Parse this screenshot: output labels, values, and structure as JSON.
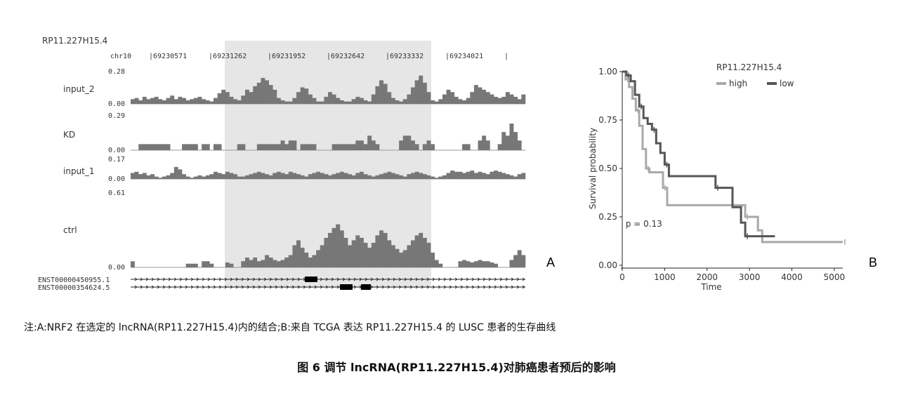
{
  "figure": {
    "caption_note": "注:A:NRF2 在选定的 lncRNA(RP11.227H15.4)内的结合;B:来自 TCGA 表达 RP11.227H15.4 的 LUSC 患者的生存曲线",
    "caption_title": "图 6  调节 lncRNA(RP11.227H15.4)对肺癌患者预后的影响",
    "label_a": "A",
    "label_b": "B"
  },
  "chart_data": [
    {
      "type": "area",
      "panel": "A",
      "title": "RP11.227H15.4",
      "chrom_label": "chr10",
      "x_ticks": [
        "69230571",
        "69231262",
        "69231952",
        "69232642",
        "69233332",
        "69234021"
      ],
      "highlight": "69231262–69233332 region",
      "bar_color": "#777777",
      "highlight_color": "#e6e6e6",
      "tracks": [
        {
          "name": "input_2",
          "ymax_label": "0.28",
          "ymin_label": "0.00",
          "ymax": 0.28,
          "values": [
            0.04,
            0.05,
            0.03,
            0.06,
            0.04,
            0.05,
            0.06,
            0.04,
            0.03,
            0.05,
            0.07,
            0.04,
            0.06,
            0.05,
            0.03,
            0.04,
            0.05,
            0.06,
            0.04,
            0.03,
            0.02,
            0.05,
            0.09,
            0.12,
            0.1,
            0.06,
            0.04,
            0.03,
            0.07,
            0.12,
            0.1,
            0.15,
            0.18,
            0.22,
            0.2,
            0.16,
            0.12,
            0.05,
            0.03,
            0.02,
            0.02,
            0.05,
            0.1,
            0.14,
            0.13,
            0.08,
            0.05,
            0.02,
            0.02,
            0.06,
            0.1,
            0.08,
            0.05,
            0.03,
            0.02,
            0.02,
            0.04,
            0.06,
            0.05,
            0.03,
            0.02,
            0.08,
            0.15,
            0.2,
            0.17,
            0.1,
            0.05,
            0.03,
            0.02,
            0.04,
            0.08,
            0.14,
            0.2,
            0.24,
            0.18,
            0.1,
            0.03,
            0.02,
            0.04,
            0.08,
            0.12,
            0.1,
            0.06,
            0.04,
            0.03,
            0.05,
            0.1,
            0.16,
            0.14,
            0.12,
            0.1,
            0.08,
            0.06,
            0.05,
            0.06,
            0.1,
            0.08,
            0.06,
            0.04,
            0.08
          ]
        },
        {
          "name": "KD",
          "ymax_label": "0.29",
          "ymin_label": "0.00",
          "ymax": 0.29,
          "values": [
            0.0,
            0.0,
            0.05,
            0.05,
            0.05,
            0.05,
            0.05,
            0.05,
            0.05,
            0.05,
            0.0,
            0.0,
            0.0,
            0.05,
            0.05,
            0.05,
            0.05,
            0.0,
            0.05,
            0.05,
            0.0,
            0.05,
            0.05,
            0.0,
            0.0,
            0.0,
            0.0,
            0.05,
            0.05,
            0.0,
            0.0,
            0.0,
            0.05,
            0.05,
            0.05,
            0.05,
            0.05,
            0.05,
            0.08,
            0.05,
            0.08,
            0.08,
            0.0,
            0.05,
            0.05,
            0.05,
            0.05,
            0.0,
            0.0,
            0.0,
            0.0,
            0.05,
            0.05,
            0.05,
            0.05,
            0.05,
            0.05,
            0.08,
            0.08,
            0.05,
            0.12,
            0.08,
            0.05,
            0.0,
            0.0,
            0.0,
            0.0,
            0.0,
            0.08,
            0.12,
            0.12,
            0.08,
            0.05,
            0.0,
            0.05,
            0.08,
            0.05,
            0.0,
            0.0,
            0.0,
            0.0,
            0.0,
            0.0,
            0.0,
            0.05,
            0.05,
            0.0,
            0.0,
            0.08,
            0.12,
            0.08,
            0.0,
            0.0,
            0.05,
            0.15,
            0.12,
            0.22,
            0.15,
            0.08,
            0.0
          ]
        },
        {
          "name": "input_1",
          "ymax_label": "0.17",
          "ymin_label": "0.00",
          "ymax": 0.17,
          "values": [
            0.05,
            0.06,
            0.04,
            0.05,
            0.03,
            0.04,
            0.02,
            0.01,
            0.02,
            0.03,
            0.05,
            0.1,
            0.08,
            0.04,
            0.02,
            0.01,
            0.02,
            0.03,
            0.02,
            0.03,
            0.04,
            0.06,
            0.05,
            0.04,
            0.06,
            0.05,
            0.04,
            0.02,
            0.02,
            0.03,
            0.04,
            0.05,
            0.06,
            0.05,
            0.04,
            0.03,
            0.05,
            0.06,
            0.05,
            0.04,
            0.06,
            0.05,
            0.04,
            0.03,
            0.02,
            0.04,
            0.05,
            0.06,
            0.05,
            0.04,
            0.03,
            0.04,
            0.05,
            0.06,
            0.05,
            0.04,
            0.03,
            0.05,
            0.06,
            0.04,
            0.03,
            0.02,
            0.03,
            0.04,
            0.05,
            0.06,
            0.05,
            0.04,
            0.03,
            0.02,
            0.04,
            0.05,
            0.06,
            0.05,
            0.04,
            0.03,
            0.02,
            0.01,
            0.02,
            0.03,
            0.05,
            0.07,
            0.06,
            0.06,
            0.05,
            0.06,
            0.07,
            0.05,
            0.06,
            0.05,
            0.04,
            0.06,
            0.07,
            0.06,
            0.05,
            0.04,
            0.03,
            0.02,
            0.04,
            0.05
          ]
        },
        {
          "name": "ctrl",
          "ymax_label": "0.61",
          "ymin_label": "0.00",
          "ymax": 0.61,
          "values": [
            0.05,
            0.0,
            0.0,
            0.0,
            0.0,
            0.0,
            0.0,
            0.0,
            0.0,
            0.0,
            0.0,
            0.0,
            0.0,
            0.0,
            0.03,
            0.03,
            0.03,
            0.0,
            0.05,
            0.05,
            0.03,
            0.0,
            0.0,
            0.0,
            0.04,
            0.03,
            0.0,
            0.0,
            0.05,
            0.08,
            0.06,
            0.08,
            0.05,
            0.06,
            0.1,
            0.08,
            0.06,
            0.05,
            0.06,
            0.08,
            0.1,
            0.18,
            0.22,
            0.16,
            0.12,
            0.08,
            0.1,
            0.14,
            0.18,
            0.24,
            0.28,
            0.32,
            0.35,
            0.3,
            0.24,
            0.18,
            0.22,
            0.26,
            0.24,
            0.2,
            0.16,
            0.2,
            0.26,
            0.3,
            0.28,
            0.22,
            0.18,
            0.15,
            0.12,
            0.14,
            0.18,
            0.22,
            0.26,
            0.28,
            0.24,
            0.2,
            0.12,
            0.06,
            0.03,
            0.0,
            0.0,
            0.0,
            0.0,
            0.05,
            0.06,
            0.05,
            0.04,
            0.05,
            0.06,
            0.05,
            0.05,
            0.04,
            0.03,
            0.0,
            0.0,
            0.0,
            0.06,
            0.1,
            0.14,
            0.1
          ]
        }
      ],
      "transcripts": [
        "ENST00000450955.1",
        "ENST00000354624.5"
      ]
    },
    {
      "type": "line",
      "panel": "B",
      "title": "RP11.227H15.4",
      "xlabel": "Time",
      "ylabel": "Survival probability",
      "xlim": [
        0,
        5200
      ],
      "ylim": [
        0,
        1
      ],
      "x_ticks": [
        0,
        1000,
        2000,
        3000,
        4000,
        5000
      ],
      "y_ticks": [
        "0.00",
        "0.25",
        "0.50",
        "0.75",
        "1.00"
      ],
      "annotation": "p = 0.13",
      "legend": "top",
      "series": [
        {
          "name": "high",
          "color": "#a9a9a9",
          "points": [
            [
              0,
              1.0
            ],
            [
              80,
              0.96
            ],
            [
              160,
              0.92
            ],
            [
              240,
              0.86
            ],
            [
              320,
              0.8
            ],
            [
              400,
              0.72
            ],
            [
              480,
              0.6
            ],
            [
              560,
              0.5
            ],
            [
              640,
              0.48
            ],
            [
              900,
              0.48
            ],
            [
              960,
              0.4
            ],
            [
              1060,
              0.31
            ],
            [
              2500,
              0.31
            ],
            [
              2900,
              0.25
            ],
            [
              3200,
              0.18
            ],
            [
              3300,
              0.12
            ],
            [
              5200,
              0.12
            ]
          ]
        },
        {
          "name": "low",
          "color": "#555555",
          "points": [
            [
              0,
              1.0
            ],
            [
              100,
              0.98
            ],
            [
              200,
              0.95
            ],
            [
              300,
              0.88
            ],
            [
              400,
              0.82
            ],
            [
              500,
              0.76
            ],
            [
              600,
              0.73
            ],
            [
              700,
              0.7
            ],
            [
              800,
              0.63
            ],
            [
              900,
              0.58
            ],
            [
              1000,
              0.52
            ],
            [
              1100,
              0.46
            ],
            [
              2100,
              0.46
            ],
            [
              2200,
              0.4
            ],
            [
              2600,
              0.3
            ],
            [
              2800,
              0.22
            ],
            [
              2900,
              0.15
            ],
            [
              3600,
              0.15
            ]
          ]
        }
      ]
    }
  ]
}
